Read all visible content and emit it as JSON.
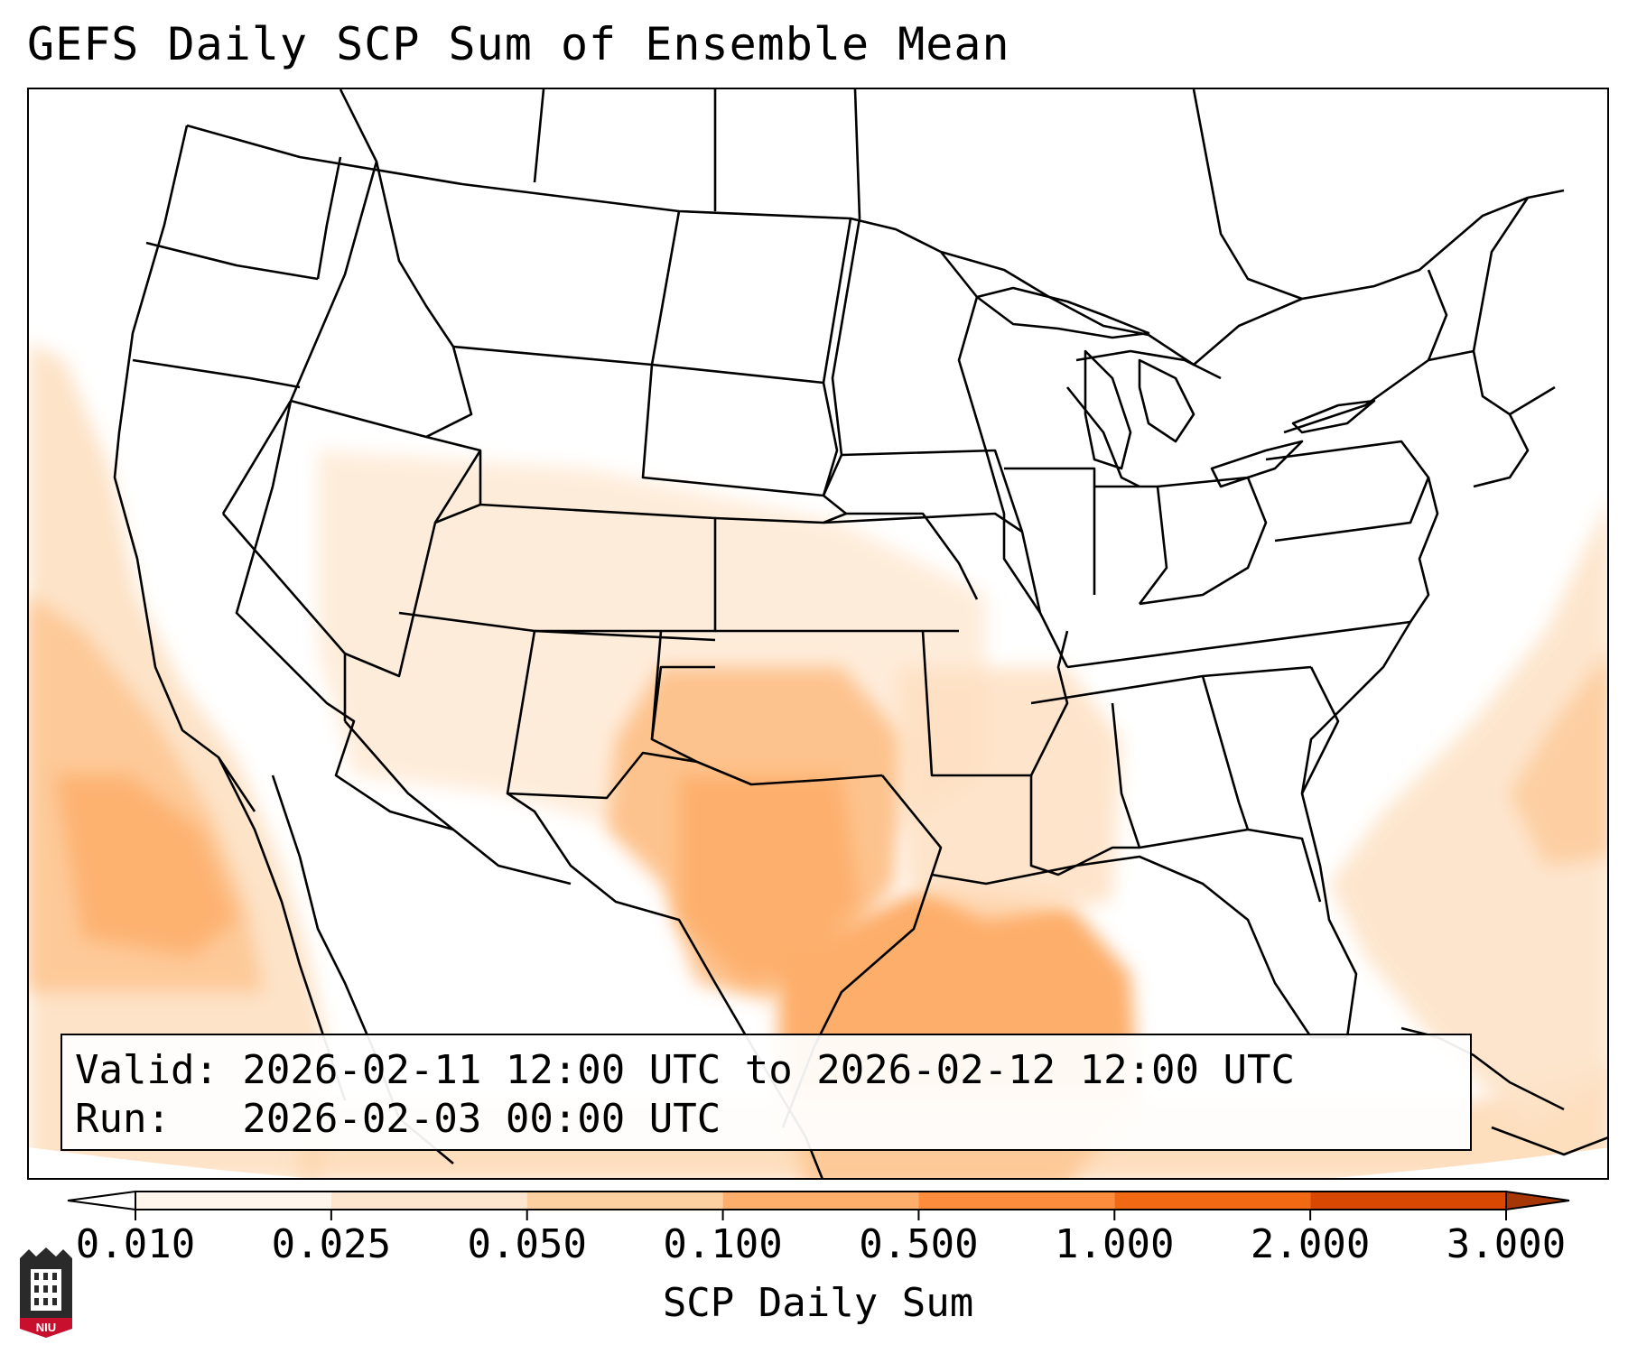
{
  "title": "GEFS Daily SCP Sum of Ensemble Mean",
  "info": {
    "valid_line": "Valid: 2026-02-11 12:00 UTC to 2026-02-12 12:00 UTC",
    "run_line": "Run:   2026-02-03 00:00 UTC"
  },
  "colorbar": {
    "title": "SCP Daily Sum",
    "ticks": [
      "0.010",
      "0.025",
      "0.050",
      "0.100",
      "0.500",
      "1.000",
      "2.000",
      "3.000"
    ],
    "colors": [
      "#fff5eb",
      "#fee6ce",
      "#fdd0a2",
      "#fdae6b",
      "#fd8d3c",
      "#f16913",
      "#d94801",
      "#a63603"
    ],
    "extend": "both"
  },
  "logo": {
    "text": "NIU",
    "icon": "university-tower-icon"
  },
  "map_layers": [
    "state-borders",
    "country-borders",
    "coastlines",
    "scp-shading"
  ]
}
